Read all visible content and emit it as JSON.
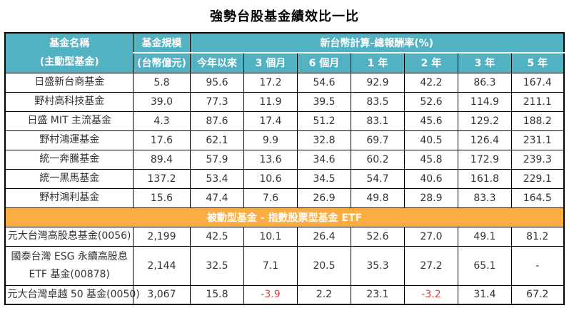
{
  "title": "強勢台股基金績效比一比",
  "colors": {
    "header_bg": "#52b2c2",
    "header_text": "#ffffff",
    "separator_bg": "#fbad41",
    "separator_text": "#ffffff",
    "negative": "#e0403a",
    "body_text": "#333333",
    "border_color": "#000000"
  },
  "chart_data": {
    "type": "table",
    "title": "強勢台股基金績效比一比",
    "header": {
      "fund_name_line1": "基金名稱",
      "fund_name_line2": "(主動型基金)",
      "fund_size_line1": "基金規模",
      "fund_size_line2": "(台幣億元)",
      "returns_group": "新台幣計算-總報酬率(%)",
      "periods": [
        "今年以來",
        "3 個月",
        "6 個月",
        "1 年",
        "2 年",
        "3 年",
        "5 年"
      ]
    },
    "active_rows": [
      {
        "name": "日盛新台商基金",
        "size": "5.8",
        "returns": [
          "95.6",
          "17.2",
          "54.6",
          "92.9",
          "42.2",
          "86.3",
          "167.4"
        ]
      },
      {
        "name": "野村高科技基金",
        "size": "39.0",
        "returns": [
          "77.3",
          "11.9",
          "39.5",
          "83.5",
          "52.6",
          "114.9",
          "211.1"
        ]
      },
      {
        "name": "日盛 MIT 主流基金",
        "size": "4.3",
        "returns": [
          "87.6",
          "17.4",
          "51.2",
          "83.1",
          "45.6",
          "129.2",
          "188.2"
        ]
      },
      {
        "name": "野村鴻運基金",
        "size": "17.6",
        "returns": [
          "62.1",
          "9.9",
          "32.8",
          "69.7",
          "40.5",
          "126.4",
          "231.1"
        ]
      },
      {
        "name": "統一奔騰基金",
        "size": "89.4",
        "returns": [
          "57.9",
          "13.6",
          "34.6",
          "60.2",
          "45.8",
          "172.9",
          "239.3"
        ]
      },
      {
        "name": "統一黑馬基金",
        "size": "137.2",
        "returns": [
          "53.4",
          "10.6",
          "34.5",
          "54.7",
          "40.6",
          "161.8",
          "229.1"
        ]
      },
      {
        "name": "野村鴻利基金",
        "size": "15.6",
        "returns": [
          "47.4",
          "7.6",
          "26.9",
          "49.8",
          "28.9",
          "83.3",
          "164.5"
        ]
      }
    ],
    "separator_label": "被動型基金 - 指數股票型基金 ETF",
    "passive_rows": [
      {
        "name": "元大台灣高股息基金(0056)",
        "size": "2,199",
        "returns": [
          "42.5",
          "10.1",
          "26.4",
          "52.6",
          "27.0",
          "49.1",
          "81.2"
        ]
      },
      {
        "name": "國泰台灣 ESG 永續高股息",
        "name_line2": "ETF 基金(00878)",
        "size": "2,144",
        "returns": [
          "32.5",
          "7.1",
          "20.5",
          "35.3",
          "27.2",
          "65.1",
          "-"
        ]
      },
      {
        "name": "元大台灣卓越 50 基金(0050)",
        "size": "3,067",
        "returns": [
          "15.8",
          "-3.9",
          "2.2",
          "23.1",
          "-3.2",
          "31.4",
          "67.2"
        ]
      }
    ]
  }
}
